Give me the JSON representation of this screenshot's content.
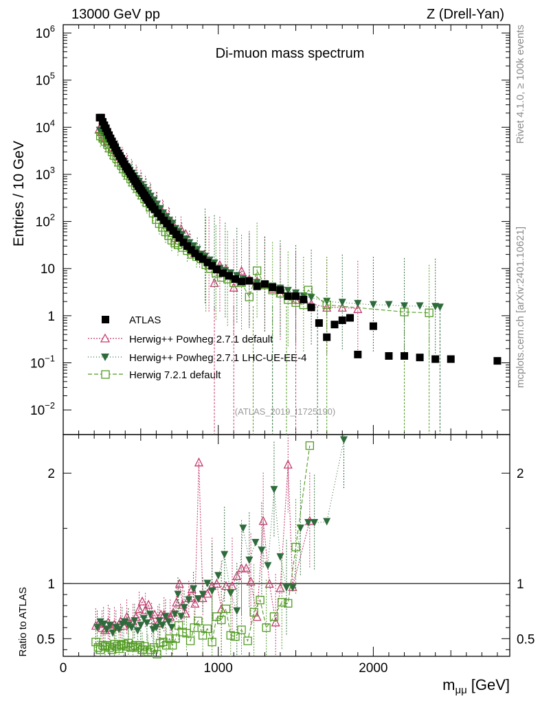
{
  "chart_data": [
    {
      "type": "scatter",
      "title": "Di-muon mass spectrum",
      "header_left": "13000 GeV pp",
      "header_right": "Z (Drell-Yan)",
      "analysis_id": "(ATLAS_2019_I1725190)",
      "ylabel": "Entries / 10 GeV",
      "yscale": "log",
      "ylim": [
        0.003,
        1500000
      ],
      "xlim": [
        0,
        2880
      ],
      "y_ticks": [
        {
          "value": 1000000,
          "base": "10",
          "exp": "6"
        },
        {
          "value": 100000,
          "base": "10",
          "exp": "5"
        },
        {
          "value": 10000,
          "base": "10",
          "exp": "4"
        },
        {
          "value": 1000,
          "base": "10",
          "exp": "3"
        },
        {
          "value": 100,
          "base": "10",
          "exp": "2"
        },
        {
          "value": 10,
          "base": "10",
          "exp": ""
        },
        {
          "value": 1,
          "base": "1",
          "exp": ""
        },
        {
          "value": 0.1,
          "base": "10",
          "exp": "−1"
        },
        {
          "value": 0.01,
          "base": "10",
          "exp": "−2"
        }
      ],
      "legend": [
        {
          "label": "ATLAS",
          "marker": "square-filled",
          "color": "#000000"
        },
        {
          "label": "Herwig++ Powheg 2.7.1 default",
          "marker": "triangle-open",
          "color": "#c43b6e"
        },
        {
          "label": "Herwig++ Powheg 2.7.1 LHC-UE-EE-4",
          "marker": "triangle-down-filled",
          "color": "#2e6b3c"
        },
        {
          "label": "Herwig 7.2.1 default",
          "marker": "square-open",
          "color": "#4f9a1f"
        }
      ],
      "series": [
        {
          "name": "ATLAS",
          "x": [
            235,
            245,
            255,
            265,
            275,
            285,
            295,
            305,
            315,
            325,
            335,
            345,
            355,
            365,
            375,
            385,
            395,
            405,
            415,
            425,
            435,
            445,
            455,
            465,
            475,
            485,
            495,
            505,
            515,
            525,
            535,
            545,
            555,
            565,
            575,
            590,
            610,
            630,
            650,
            670,
            690,
            710,
            730,
            750,
            775,
            800,
            825,
            850,
            875,
            900,
            930,
            960,
            990,
            1030,
            1070,
            1110,
            1150,
            1200,
            1250,
            1300,
            1350,
            1400,
            1450,
            1500,
            1550,
            1600,
            1650,
            1700,
            1750,
            1800,
            1850,
            1900,
            2000,
            2100,
            2200,
            2300,
            2400,
            2500,
            2800
          ],
          "y": [
            16000,
            16000,
            13000,
            11000,
            9500,
            8000,
            6800,
            5800,
            5000,
            4300,
            3700,
            3200,
            2800,
            2450,
            2150,
            1900,
            1650,
            1450,
            1300,
            1150,
            1020,
            900,
            800,
            710,
            630,
            560,
            500,
            450,
            400,
            360,
            320,
            285,
            255,
            230,
            205,
            180,
            150,
            125,
            105,
            90,
            75,
            63,
            53,
            45,
            36,
            30,
            25,
            21,
            18,
            16,
            13.5,
            11.5,
            9.6,
            8,
            7,
            6,
            5.3,
            5.5,
            4.2,
            4.7,
            4,
            3.5,
            2.6,
            2.6,
            2.2,
            1.5,
            0.7,
            0.35,
            0.65,
            0.8,
            0.9,
            0.15,
            0.6,
            0.14,
            0.14,
            0.13,
            0.12,
            0.12,
            0.11
          ]
        },
        {
          "name": "Herwig++ Powheg 2.7.1 default",
          "x": [
            230,
            245,
            260,
            275,
            290,
            305,
            320,
            335,
            350,
            365,
            380,
            395,
            410,
            425,
            440,
            455,
            470,
            485,
            500,
            515,
            530,
            545,
            560,
            580,
            600,
            620,
            640,
            660,
            680,
            700,
            720,
            740,
            760,
            790,
            820,
            850,
            880,
            910,
            940,
            975,
            1010,
            1050,
            1100,
            1150,
            1200,
            1250,
            1300,
            1350,
            1400,
            1450,
            1500,
            1600,
            1700,
            1800,
            1900
          ],
          "y": [
            9000,
            8000,
            7000,
            6000,
            5200,
            4300,
            3800,
            3300,
            2900,
            2400,
            2100,
            1800,
            1550,
            1300,
            1150,
            1000,
            880,
            770,
            680,
            580,
            510,
            430,
            370,
            290,
            230,
            185,
            160,
            140,
            110,
            100,
            45,
            60,
            70,
            55,
            30,
            25,
            18,
            20,
            12,
            5,
            12,
            10,
            4,
            9,
            6,
            5.5,
            4.5,
            3.8,
            3,
            2.7,
            2.2,
            1.8,
            1.5,
            1.5,
            1.4
          ]
        },
        {
          "name": "Herwig++ Powheg 2.7.1 LHC-UE-EE-4",
          "x": [
            235,
            250,
            265,
            280,
            295,
            310,
            325,
            340,
            355,
            370,
            385,
            400,
            415,
            430,
            445,
            460,
            475,
            490,
            505,
            520,
            535,
            550,
            565,
            585,
            605,
            625,
            645,
            665,
            685,
            705,
            725,
            745,
            765,
            790,
            815,
            840,
            865,
            890,
            915,
            945,
            975,
            1010,
            1045,
            1080,
            1120,
            1160,
            1200,
            1250,
            1300,
            1350,
            1400,
            1450,
            1500,
            1550,
            1600,
            1700,
            1800,
            1900,
            2000,
            2100,
            2200,
            2300,
            2400,
            2430
          ],
          "y": [
            8500,
            7500,
            6500,
            5500,
            4800,
            4000,
            3500,
            3000,
            2600,
            2200,
            1900,
            1650,
            1400,
            1200,
            1050,
            920,
            800,
            700,
            600,
            520,
            450,
            390,
            340,
            280,
            230,
            185,
            150,
            125,
            105,
            90,
            70,
            60,
            52,
            42,
            35,
            30,
            25,
            20,
            18,
            15,
            13,
            10,
            9,
            8,
            7,
            6,
            5.4,
            5,
            4.6,
            4.2,
            3.8,
            3.4,
            3,
            2.6,
            2.4,
            2,
            1.9,
            1.8,
            1.7,
            1.7,
            1.6,
            1.6,
            1.55,
            1.5
          ]
        },
        {
          "name": "Herwig 7.2.1 default",
          "x": [
            240,
            255,
            270,
            285,
            300,
            315,
            330,
            345,
            360,
            375,
            390,
            405,
            420,
            435,
            450,
            465,
            480,
            495,
            510,
            525,
            540,
            560,
            580,
            600,
            620,
            640,
            660,
            680,
            700,
            720,
            740,
            770,
            800,
            830,
            860,
            890,
            920,
            950,
            985,
            1020,
            1060,
            1100,
            1150,
            1200,
            1250,
            1300,
            1350,
            1400,
            1450,
            1500,
            1550,
            1580,
            1700,
            2200,
            2360
          ],
          "y": [
            6500,
            5800,
            5000,
            4300,
            3600,
            3000,
            2500,
            2150,
            1800,
            1550,
            1300,
            1100,
            950,
            800,
            680,
            580,
            500,
            420,
            360,
            300,
            250,
            200,
            150,
            110,
            90,
            75,
            60,
            50,
            40,
            35,
            32,
            28,
            24,
            20,
            18,
            16,
            12,
            10,
            8,
            6.5,
            6,
            5,
            5,
            2.5,
            9,
            4.5,
            3.5,
            3,
            2.2,
            1.9,
            1.7,
            3.5,
            1.7,
            1.2,
            1.15
          ]
        }
      ]
    },
    {
      "type": "scatter",
      "ylabel": "Ratio to ATLAS",
      "xlabel": "m",
      "xlabel_sub": "μμ",
      "xlabel_unit": "[GeV]",
      "xlim": [
        0,
        2880
      ],
      "ylim": [
        0.34,
        2.35
      ],
      "reference_line": 1,
      "x_ticks": [
        0,
        1000,
        2000
      ],
      "x_tick_labels": [
        "0",
        "1000",
        "2000"
      ],
      "y_ticks": [
        0.5,
        1,
        2
      ],
      "y_tick_labels": [
        "0.5",
        "1",
        "2"
      ],
      "series": [
        {
          "name": "Herwig++ Powheg 2.7.1 default",
          "x": [
            210,
            230,
            250,
            270,
            290,
            310,
            330,
            350,
            370,
            390,
            410,
            430,
            450,
            470,
            490,
            510,
            530,
            550,
            570,
            590,
            610,
            630,
            650,
            670,
            690,
            710,
            730,
            750,
            770,
            790,
            810,
            830,
            850,
            875,
            900,
            930,
            960,
            990,
            1020,
            1050,
            1090,
            1120,
            1150,
            1180,
            1210,
            1250,
            1290,
            1330,
            1370,
            1400,
            1450,
            1480,
            1590
          ],
          "y": [
            0.62,
            0.64,
            0.6,
            0.58,
            0.65,
            0.6,
            0.63,
            0.61,
            0.66,
            0.62,
            0.7,
            0.64,
            0.66,
            0.7,
            0.77,
            0.84,
            0.76,
            0.81,
            0.67,
            0.72,
            0.64,
            0.72,
            0.72,
            0.69,
            0.7,
            0.74,
            0.83,
            1.0,
            0.81,
            0.73,
            0.87,
            0.95,
            0.82,
            2.1,
            0.87,
            0.91,
            0.98,
            1.0,
            0.77,
            0.98,
            0.98,
            1.07,
            1.14,
            1.14,
            1.02,
            0.7,
            1.57,
            1.0,
            0.65,
            0.96,
            2.08,
            0.97,
            1.57
          ]
        },
        {
          "name": "Herwig++ Powheg 2.7.1 LHC-UE-EE-4",
          "x": [
            220,
            240,
            260,
            280,
            300,
            320,
            340,
            360,
            380,
            400,
            420,
            440,
            460,
            480,
            500,
            520,
            540,
            560,
            580,
            600,
            620,
            640,
            660,
            680,
            700,
            720,
            740,
            760,
            780,
            810,
            840,
            870,
            900,
            930,
            960,
            1000,
            1040,
            1080,
            1120,
            1160,
            1200,
            1240,
            1280,
            1320,
            1360,
            1400,
            1440,
            1480,
            1530,
            1580,
            1620,
            1700,
            1810
          ],
          "y": [
            0.6,
            0.65,
            0.63,
            0.58,
            0.62,
            0.55,
            0.6,
            0.58,
            0.63,
            0.65,
            0.62,
            0.6,
            0.66,
            0.57,
            0.62,
            0.68,
            0.64,
            0.72,
            0.58,
            0.6,
            0.66,
            0.62,
            0.7,
            0.65,
            0.6,
            0.72,
            0.9,
            0.7,
            0.78,
            0.85,
            0.95,
            0.86,
            0.9,
            1.0,
            0.93,
            1.07,
            1.26,
            0.91,
            0.75,
            1.5,
            1.21,
            1.37,
            1.3,
            1.16,
            1.85,
            1.24,
            0.96,
            0.96,
            1.5,
            1.55,
            1.55,
            1.56,
            2.3
          ]
        },
        {
          "name": "Herwig 7.2.1 default",
          "x": [
            210,
            225,
            240,
            255,
            270,
            285,
            300,
            315,
            330,
            345,
            360,
            375,
            390,
            405,
            420,
            435,
            450,
            465,
            480,
            495,
            510,
            525,
            545,
            565,
            585,
            605,
            625,
            645,
            665,
            685,
            705,
            725,
            745,
            770,
            795,
            820,
            845,
            870,
            900,
            930,
            960,
            990,
            1020,
            1050,
            1080,
            1110,
            1150,
            1190,
            1230,
            1270,
            1310,
            1360,
            1410,
            1450,
            1500,
            1590
          ],
          "y": [
            0.47,
            0.42,
            0.4,
            0.44,
            0.43,
            0.44,
            0.42,
            0.4,
            0.45,
            0.43,
            0.41,
            0.44,
            0.45,
            0.43,
            0.46,
            0.42,
            0.43,
            0.44,
            0.42,
            0.44,
            0.4,
            0.43,
            0.38,
            0.4,
            0.42,
            0.36,
            0.46,
            0.47,
            0.44,
            0.5,
            0.44,
            0.5,
            0.62,
            0.56,
            0.55,
            0.48,
            0.6,
            0.66,
            0.53,
            0.59,
            0.47,
            0.7,
            0.67,
            0.77,
            0.53,
            0.52,
            0.58,
            0.48,
            0.74,
            0.85,
            0.6,
            0.7,
            0.83,
            0.82,
            1.33,
            2.25
          ]
        }
      ]
    }
  ],
  "side_labels": {
    "rivet": "Rivet 4.1.0, ≥ 100k events",
    "mcplots": "mcplots.cern.ch [arXiv:2401.10621]"
  },
  "colors": {
    "atlas": "#000000",
    "default": "#c43b6e",
    "lhc_ue": "#2e6b3c",
    "herwig7": "#4f9a1f"
  }
}
